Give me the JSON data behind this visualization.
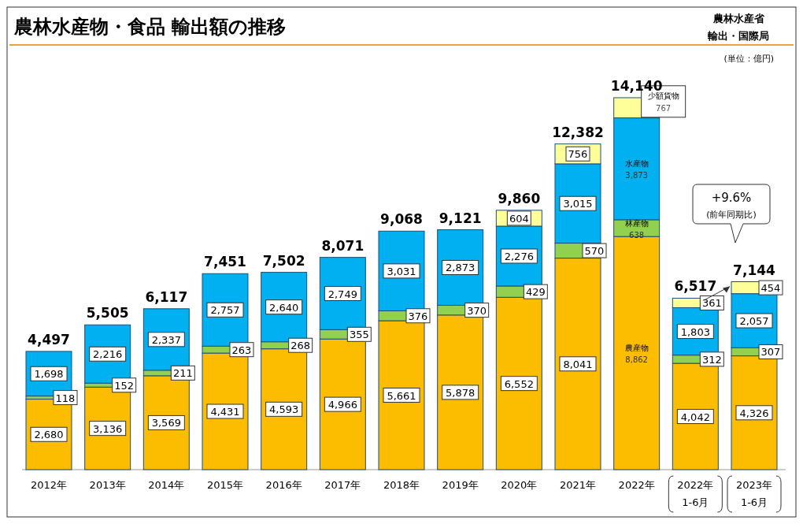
{
  "chart_data": {
    "type": "bar",
    "stacked": true,
    "title": "農林水産物・食品 輸出額の推移",
    "categories": [
      "2012年",
      "2013年",
      "2014年",
      "2015年",
      "2016年",
      "2017年",
      "2018年",
      "2019年",
      "2020年",
      "2021年",
      "2022年",
      "2022年\n1-6月",
      "2023年\n1-6月"
    ],
    "series": [
      {
        "name": "農産物",
        "color": "#fcbd00",
        "values": [
          2680,
          3136,
          3569,
          4431,
          4593,
          4966,
          5661,
          5878,
          6552,
          8041,
          8862,
          4042,
          4326
        ],
        "value_labels": [
          "2,680",
          "3,136",
          "3,569",
          "4,431",
          "4,593",
          "4,966",
          "5,661",
          "5,878",
          "6,552",
          "8,041",
          "8,862",
          "4,042",
          "4,326"
        ]
      },
      {
        "name": "林産物",
        "color": "#92d050",
        "values": [
          118,
          152,
          211,
          263,
          268,
          355,
          376,
          370,
          429,
          570,
          638,
          312,
          307
        ],
        "value_labels": [
          "118",
          "152",
          "211",
          "263",
          "268",
          "355",
          "376",
          "370",
          "429",
          "570",
          "638",
          "312",
          "307"
        ]
      },
      {
        "name": "水産物",
        "color": "#00b0f0",
        "values": [
          1698,
          2216,
          2337,
          2757,
          2640,
          2749,
          3031,
          2873,
          2276,
          3015,
          3873,
          1803,
          2057
        ],
        "value_labels": [
          "1,698",
          "2,216",
          "2,337",
          "2,757",
          "2,640",
          "2,749",
          "3,031",
          "2,873",
          "2,276",
          "3,015",
          "3,873",
          "1,803",
          "2,057"
        ]
      },
      {
        "name": "少額貨物",
        "color": "#ffff99",
        "values": [
          null,
          null,
          null,
          null,
          null,
          null,
          null,
          null,
          604,
          756,
          767,
          361,
          454
        ],
        "value_labels": [
          null,
          null,
          null,
          null,
          null,
          null,
          null,
          null,
          "604",
          "756",
          "767",
          "361",
          "454"
        ]
      }
    ],
    "totals": [
      "4,497",
      "5,505",
      "6,117",
      "7,451",
      "7,502",
      "8,071",
      "9,068",
      "9,121",
      "9,860",
      "12,382",
      "14,140",
      "6,517",
      "7,144"
    ],
    "annotations": [
      "(単位：億円)",
      "+9.6%",
      "(前年同期比)",
      "農林水産省",
      "輸出・国際局"
    ]
  }
}
